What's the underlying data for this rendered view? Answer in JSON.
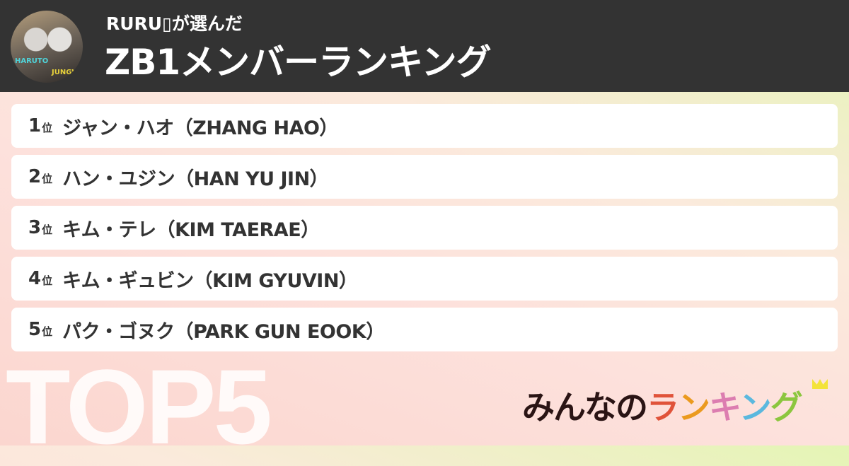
{
  "header": {
    "subtitle": "RURU▯が選んだ",
    "title": "ZB1メンバーランキング",
    "avatar": {
      "labels": [
        "HARUTO",
        "JUNGWON"
      ]
    }
  },
  "rankings": [
    {
      "rank": "1",
      "suffix": "位",
      "name": "ジャン・ハオ（ZHANG HAO）"
    },
    {
      "rank": "2",
      "suffix": "位",
      "name": "ハン・ユジン（HAN YU JIN）"
    },
    {
      "rank": "3",
      "suffix": "位",
      "name": "キム・テレ（KIM TAERAE）"
    },
    {
      "rank": "4",
      "suffix": "位",
      "name": "キム・ギュビン（KIM GYUVIN）"
    },
    {
      "rank": "5",
      "suffix": "位",
      "name": "パク・ゴヌク（PARK GUN EOOK）"
    }
  ],
  "badge": "TOP5",
  "logo": {
    "prefix": "みんなの",
    "letters": [
      "ラ",
      "ン",
      "キ",
      "ン",
      "グ"
    ],
    "colors": [
      "#e0533a",
      "#eb9a1f",
      "#dc7db0",
      "#5bb8de",
      "#8cc63f"
    ]
  }
}
